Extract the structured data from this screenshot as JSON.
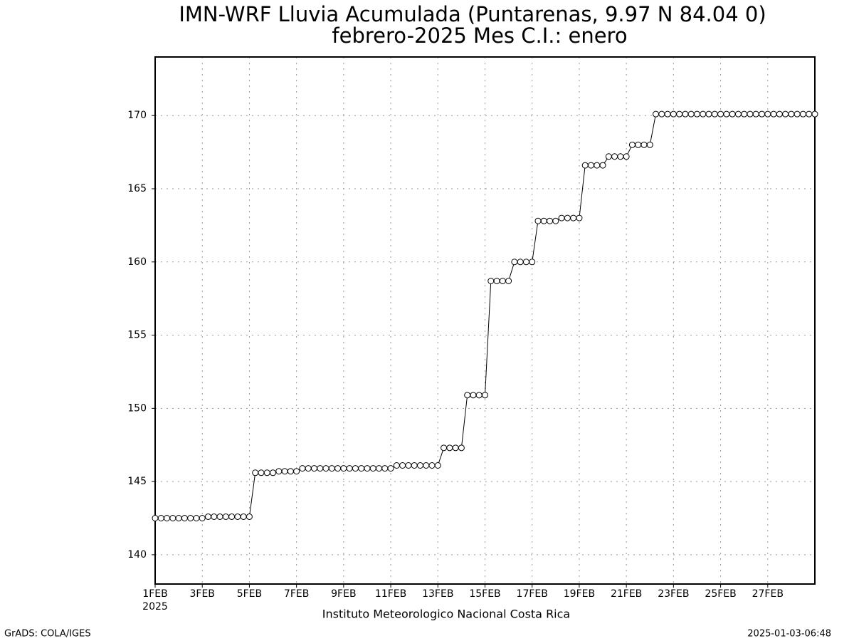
{
  "chart_data": {
    "type": "line",
    "title": "IMN-WRF  Lluvia Acumulada (Puntarenas, 9.97  N 84.04  0)",
    "subtitle": "febrero-2025 Mes C.I.: enero",
    "x_sublabel": "2025",
    "x_label": "Instituto Meteorologico Nacional Costa Rica",
    "footer_left": "GrADS: COLA/IGES",
    "footer_right": "2025-01-03-06:48",
    "x": [
      0,
      0.25,
      0.5,
      0.75,
      1,
      1.25,
      1.5,
      1.75,
      2,
      2.25,
      2.5,
      2.75,
      3,
      3.25,
      3.5,
      3.75,
      4,
      4.25,
      4.5,
      4.75,
      5,
      5.25,
      5.5,
      5.75,
      6,
      6.25,
      6.5,
      6.75,
      7,
      7.25,
      7.5,
      7.75,
      8,
      8.25,
      8.5,
      8.75,
      9,
      9.25,
      9.5,
      9.75,
      10,
      10.25,
      10.5,
      10.75,
      11,
      11.25,
      11.5,
      11.75,
      12,
      12.25,
      12.5,
      12.75,
      13,
      13.25,
      13.5,
      13.75,
      14,
      14.25,
      14.5,
      14.75,
      15,
      15.25,
      15.5,
      15.75,
      16,
      16.25,
      16.5,
      16.75,
      17,
      17.25,
      17.5,
      17.75,
      18,
      18.25,
      18.5,
      18.75,
      19,
      19.25,
      19.5,
      19.75,
      20,
      20.25,
      20.5,
      20.75,
      21,
      21.25,
      21.5,
      21.75,
      22,
      22.25,
      22.5,
      22.75,
      23,
      23.25,
      23.5,
      23.75,
      24,
      24.25,
      24.5,
      24.75,
      25,
      25.25,
      25.5,
      25.75,
      26,
      26.25,
      26.5,
      26.75,
      27,
      27.25,
      27.5,
      27.75,
      28
    ],
    "values": [
      142.5,
      142.5,
      142.5,
      142.5,
      142.5,
      142.5,
      142.5,
      142.5,
      142.5,
      142.6,
      142.6,
      142.6,
      142.6,
      142.6,
      142.6,
      142.6,
      142.6,
      145.6,
      145.6,
      145.6,
      145.6,
      145.7,
      145.7,
      145.7,
      145.7,
      145.9,
      145.9,
      145.9,
      145.9,
      145.9,
      145.9,
      145.9,
      145.9,
      145.9,
      145.9,
      145.9,
      145.9,
      145.9,
      145.9,
      145.9,
      145.9,
      146.1,
      146.1,
      146.1,
      146.1,
      146.1,
      146.1,
      146.1,
      146.1,
      147.3,
      147.3,
      147.3,
      147.3,
      150.9,
      150.9,
      150.9,
      150.9,
      158.7,
      158.7,
      158.7,
      158.7,
      160.0,
      160.0,
      160.0,
      160.0,
      162.8,
      162.8,
      162.8,
      162.8,
      163.0,
      163.0,
      163.0,
      163.0,
      166.6,
      166.6,
      166.6,
      166.6,
      167.2,
      167.2,
      167.2,
      167.2,
      168.0,
      168.0,
      168.0,
      168.0,
      170.1,
      170.1,
      170.1,
      170.1,
      170.1,
      170.1,
      170.1,
      170.1,
      170.1,
      170.1,
      170.1,
      170.1,
      170.1,
      170.1,
      170.1,
      170.1,
      170.1,
      170.1,
      170.1,
      170.1,
      170.1,
      170.1,
      170.1,
      170.1,
      170.1,
      170.1,
      170.1,
      170.1
    ],
    "color": "#000000",
    "xlim": [
      0,
      28
    ],
    "xticks": [
      {
        "value": 0,
        "label": "1FEB"
      },
      {
        "value": 2,
        "label": "3FEB"
      },
      {
        "value": 4,
        "label": "5FEB"
      },
      {
        "value": 6,
        "label": "7FEB"
      },
      {
        "value": 8,
        "label": "9FEB"
      },
      {
        "value": 10,
        "label": "11FEB"
      },
      {
        "value": 12,
        "label": "13FEB"
      },
      {
        "value": 14,
        "label": "15FEB"
      },
      {
        "value": 16,
        "label": "17FEB"
      },
      {
        "value": 18,
        "label": "19FEB"
      },
      {
        "value": 20,
        "label": "21FEB"
      },
      {
        "value": 22,
        "label": "23FEB"
      },
      {
        "value": 24,
        "label": "25FEB"
      },
      {
        "value": 26,
        "label": "27FEB"
      }
    ],
    "ylim": [
      138,
      174
    ],
    "yticks": [
      140,
      145,
      150,
      155,
      160,
      165,
      170
    ],
    "grid": true
  }
}
